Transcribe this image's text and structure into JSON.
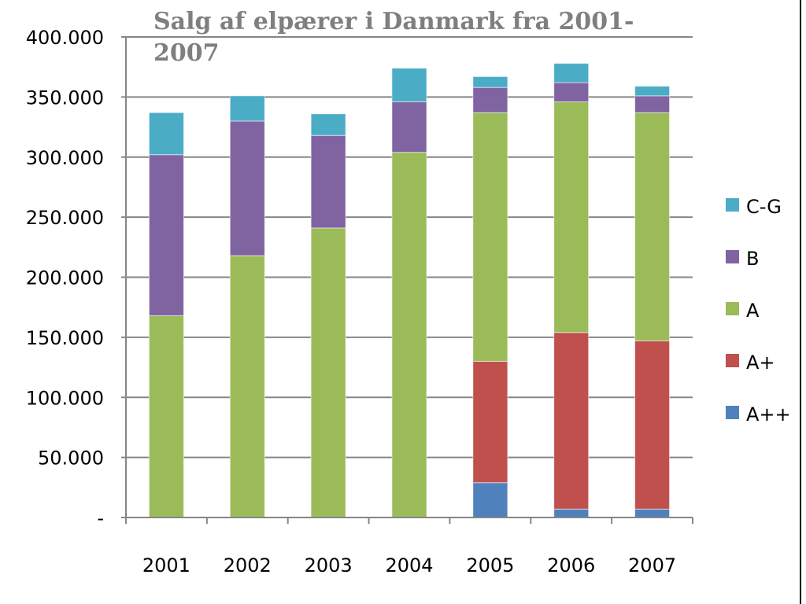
{
  "chart_data": {
    "type": "bar",
    "stacked": true,
    "title": "Salg af elpærer i Danmark fra 2001-2007",
    "xlabel": "",
    "ylabel": "",
    "categories": [
      "2001",
      "2002",
      "2003",
      "2004",
      "2005",
      "2006",
      "2007"
    ],
    "ylim": [
      0,
      400000
    ],
    "y_ticks": [
      0,
      50000,
      100000,
      150000,
      200000,
      250000,
      300000,
      350000,
      400000
    ],
    "y_tick_labels": [
      "-",
      "50.000",
      "100.000",
      "150.000",
      "200.000",
      "250.000",
      "300.000",
      "350.000",
      "400.000"
    ],
    "grid": true,
    "legend_position": "right",
    "series": [
      {
        "name": "A++",
        "color": "#4f81bd",
        "values": [
          0,
          0,
          0,
          0,
          29000,
          7000,
          7000
        ]
      },
      {
        "name": "A+",
        "color": "#c0504d",
        "values": [
          0,
          0,
          0,
          0,
          101000,
          147000,
          140000
        ]
      },
      {
        "name": "A",
        "color": "#9bbb59",
        "values": [
          168000,
          218000,
          241000,
          304000,
          207000,
          192000,
          190000
        ]
      },
      {
        "name": "B",
        "color": "#8064a2",
        "values": [
          134000,
          112000,
          77000,
          42000,
          21000,
          16000,
          14000
        ]
      },
      {
        "name": "C-G",
        "color": "#4bacc6",
        "values": [
          35000,
          21000,
          18000,
          28000,
          9000,
          16000,
          8000
        ]
      }
    ]
  }
}
